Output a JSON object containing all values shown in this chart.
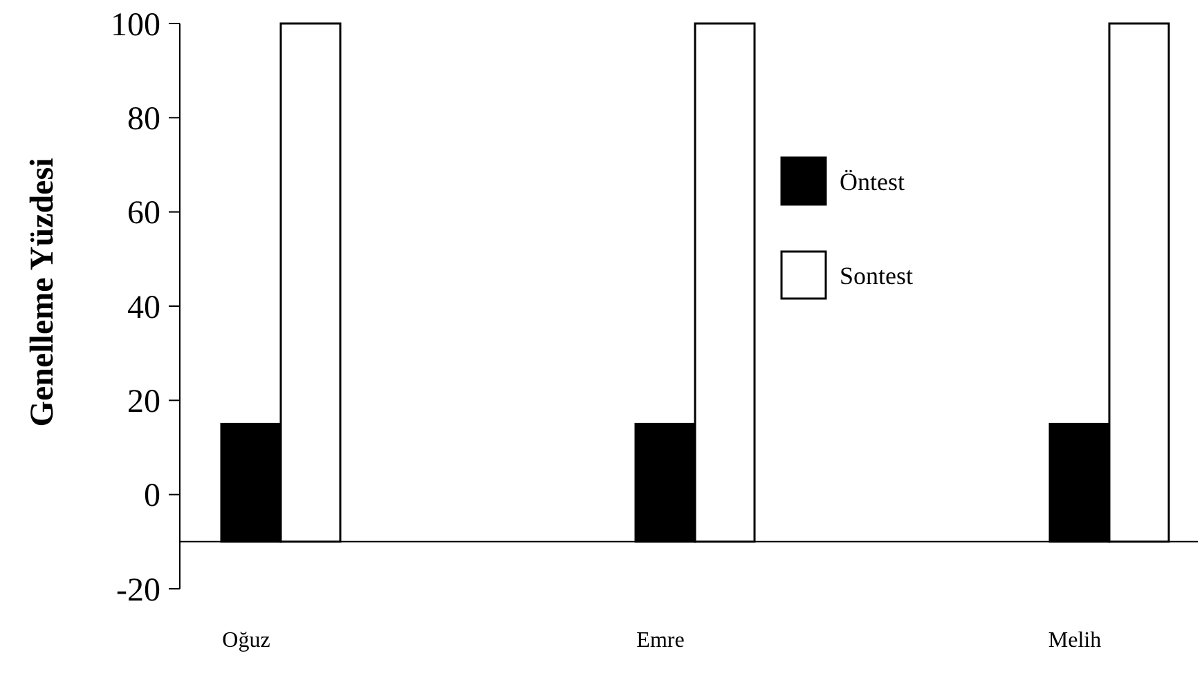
{
  "chart_data": {
    "type": "bar",
    "ylabel": "Genelleme Yüzdesi",
    "categories": [
      "Oğuz",
      "Emre",
      "Melih"
    ],
    "series": [
      {
        "name": "Öntest",
        "color": "#000000",
        "values": [
          25,
          25,
          25
        ],
        "base": [
          -10,
          -10,
          -10
        ]
      },
      {
        "name": "Sontest",
        "color": "#ffffff",
        "values": [
          110,
          110,
          110
        ],
        "base": [
          -10,
          -10,
          -10
        ]
      }
    ],
    "ref_lines": [
      {
        "axis": "y",
        "value": -10,
        "color": "#000000"
      }
    ],
    "ylim": [
      -20,
      100
    ],
    "yticks": [
      -20,
      0,
      20,
      40,
      60,
      80,
      100
    ],
    "grid": false,
    "legend": "right"
  }
}
